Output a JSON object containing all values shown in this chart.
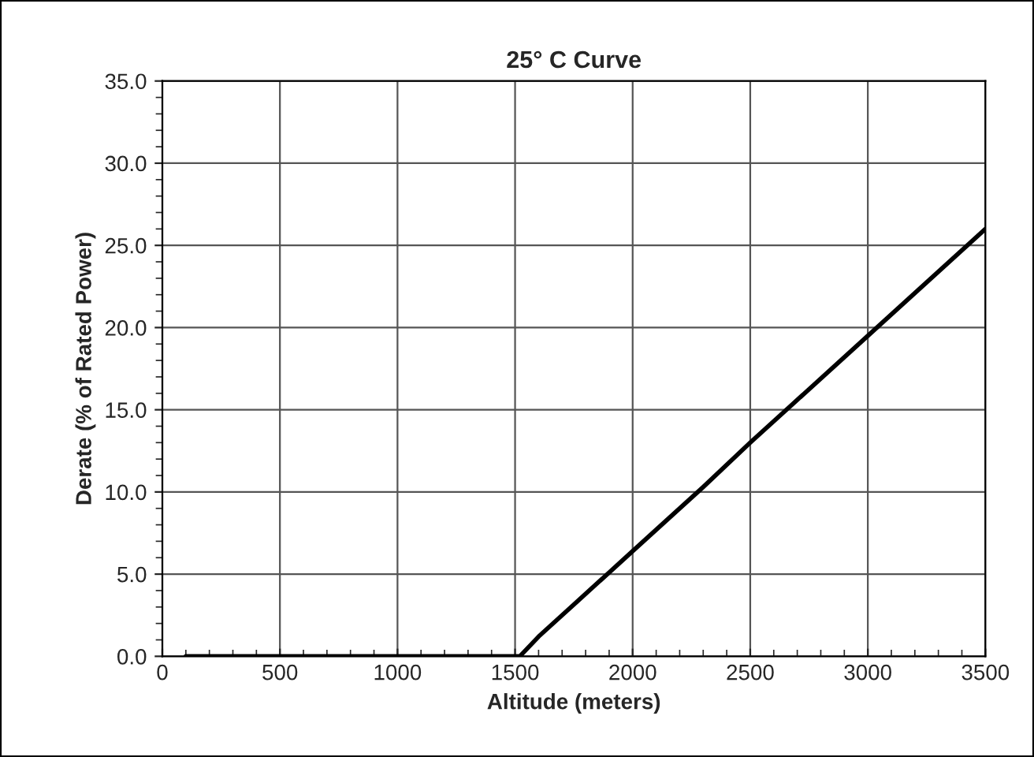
{
  "chart_data": {
    "type": "line",
    "title": "25° C Curve",
    "xlabel": "Altitude (meters)",
    "ylabel": "Derate (% of Rated Power)",
    "x": [
      100,
      1520,
      1600,
      2000,
      2300,
      2500,
      3000,
      3500
    ],
    "series": [
      {
        "color": "#000000",
        "values": [
          0,
          0,
          1.2,
          6.4,
          10.3,
          13.0,
          19.5,
          26.0
        ]
      }
    ],
    "xlim": [
      0,
      3500
    ],
    "xticks": [
      0,
      500,
      1000,
      1500,
      2000,
      2500,
      3000,
      3500
    ],
    "ylim": [
      0,
      35
    ],
    "yticks": [
      {
        "value": 0,
        "label": "0.0"
      },
      {
        "value": 5,
        "label": "5.0"
      },
      {
        "value": 10,
        "label": "10.0"
      },
      {
        "value": 15,
        "label": "15.0"
      },
      {
        "value": 20,
        "label": "20.0"
      },
      {
        "value": 25,
        "label": "25.0"
      },
      {
        "value": 30,
        "label": "30.0"
      },
      {
        "value": 35,
        "label": "35.0"
      }
    ],
    "grid": true,
    "legend": false,
    "marker": "none",
    "line_style": "solid"
  }
}
